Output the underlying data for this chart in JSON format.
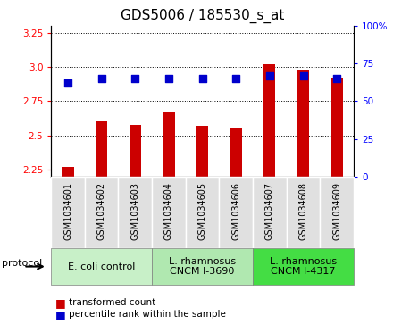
{
  "title": "GDS5006 / 185530_s_at",
  "samples": [
    "GSM1034601",
    "GSM1034602",
    "GSM1034603",
    "GSM1034604",
    "GSM1034605",
    "GSM1034606",
    "GSM1034607",
    "GSM1034608",
    "GSM1034609"
  ],
  "transformed_count": [
    2.27,
    2.6,
    2.58,
    2.67,
    2.57,
    2.56,
    3.02,
    2.98,
    2.92
  ],
  "percentile_rank": [
    62,
    65,
    65,
    65,
    65,
    65,
    67,
    67,
    65
  ],
  "ylim_left": [
    2.2,
    3.3
  ],
  "ylim_right": [
    0,
    100
  ],
  "yticks_left": [
    2.25,
    2.5,
    2.75,
    3.0,
    3.25
  ],
  "yticks_right": [
    0,
    25,
    50,
    75,
    100
  ],
  "protocol_labels": [
    "E. coli control",
    "L. rhamnosus\nCNCM I-3690",
    "L. rhamnosus\nCNCM I-4317"
  ],
  "protocol_ranges": [
    [
      0,
      3
    ],
    [
      3,
      6
    ],
    [
      6,
      9
    ]
  ],
  "protocol_colors": [
    "#c8f0c8",
    "#b0e8b0",
    "#44dd44"
  ],
  "bar_color": "#cc0000",
  "dot_color": "#0000cc",
  "bar_width": 0.35,
  "dot_size": 30,
  "bg_color": "#ffffff",
  "sample_bg_color": "#e0e0e0",
  "title_fontsize": 11,
  "tick_fontsize": 7.5,
  "sample_fontsize": 7,
  "legend_fontsize": 7.5,
  "protocol_fontsize": 8
}
